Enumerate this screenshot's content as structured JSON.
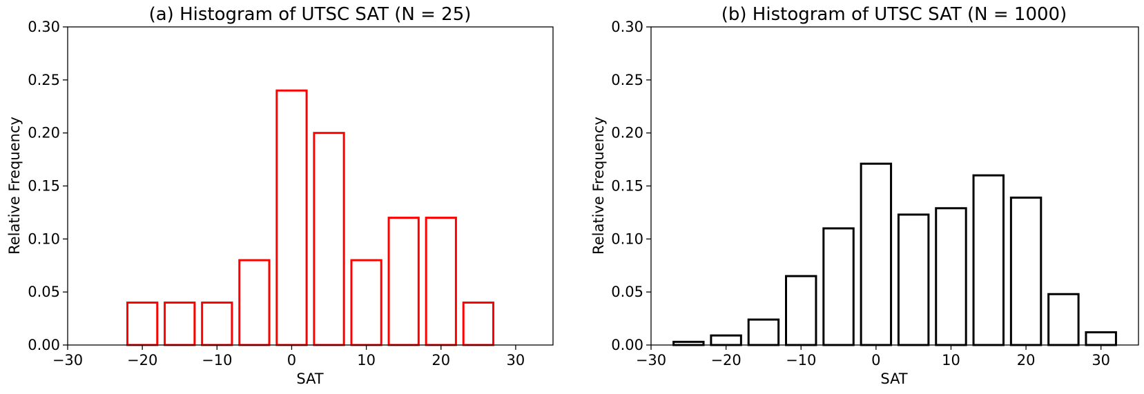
{
  "chart_data": [
    {
      "type": "bar",
      "title": "(a) Histogram of UTSC SAT (N = 25)",
      "xlabel": "SAT",
      "ylabel": "Relative Frequency",
      "xlim": [
        -30,
        35
      ],
      "ylim": [
        0,
        0.3
      ],
      "x_ticks": [
        -30,
        -20,
        -10,
        0,
        10,
        20,
        30
      ],
      "x_tick_labels": [
        "−30",
        "−20",
        "−10",
        "0",
        "10",
        "20",
        "30"
      ],
      "y_ticks": [
        0,
        0.05,
        0.1,
        0.15,
        0.2,
        0.25,
        0.3
      ],
      "y_tick_labels": [
        "0.00",
        "0.05",
        "0.10",
        "0.15",
        "0.20",
        "0.25",
        "0.30"
      ],
      "bar_width": 4,
      "x": [
        -25,
        -20,
        -15,
        -10,
        -5,
        0,
        5,
        10,
        15,
        20,
        25,
        30
      ],
      "values": [
        0.0,
        0.04,
        0.04,
        0.04,
        0.08,
        0.24,
        0.2,
        0.08,
        0.12,
        0.12,
        0.04,
        0.0
      ],
      "edge_color": "#ff0000",
      "fill_color": "#ffffff",
      "grid": false
    },
    {
      "type": "bar",
      "title": "(b) Histogram of UTSC SAT (N = 1000)",
      "xlabel": "SAT",
      "ylabel": "Relative Frequency",
      "xlim": [
        -30,
        35
      ],
      "ylim": [
        0,
        0.3
      ],
      "x_ticks": [
        -30,
        -20,
        -10,
        0,
        10,
        20,
        30
      ],
      "x_tick_labels": [
        "−30",
        "−20",
        "−10",
        "0",
        "10",
        "20",
        "30"
      ],
      "y_ticks": [
        0,
        0.05,
        0.1,
        0.15,
        0.2,
        0.25,
        0.3
      ],
      "y_tick_labels": [
        "0.00",
        "0.05",
        "0.10",
        "0.15",
        "0.20",
        "0.25",
        "0.30"
      ],
      "bar_width": 4,
      "x": [
        -25,
        -20,
        -15,
        -10,
        -5,
        0,
        5,
        10,
        15,
        20,
        25,
        30
      ],
      "values": [
        0.003,
        0.009,
        0.024,
        0.065,
        0.11,
        0.171,
        0.123,
        0.129,
        0.16,
        0.139,
        0.048,
        0.012
      ],
      "edge_color": "#000000",
      "fill_color": "#ffffff",
      "grid": false
    }
  ]
}
